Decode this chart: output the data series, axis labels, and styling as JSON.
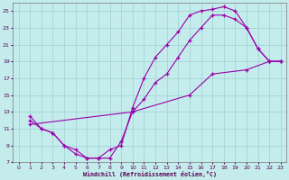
{
  "xlabel": "Windchill (Refroidissement éolien,°C)",
  "bg_color": "#c5ecec",
  "grid_color": "#a8d8d8",
  "line_color": "#9900aa",
  "xlim": [
    -0.5,
    23.5
  ],
  "ylim": [
    7,
    26
  ],
  "xticks": [
    0,
    1,
    2,
    3,
    4,
    5,
    6,
    7,
    8,
    9,
    10,
    11,
    12,
    13,
    14,
    15,
    16,
    17,
    18,
    19,
    20,
    21,
    22,
    23
  ],
  "yticks": [
    7,
    9,
    11,
    13,
    15,
    17,
    19,
    21,
    23,
    25
  ],
  "series1_x": [
    1,
    2,
    3,
    4,
    5,
    6,
    7,
    8,
    9,
    10,
    11,
    12,
    13,
    14,
    15,
    16,
    17,
    18,
    19,
    20,
    21,
    22,
    23
  ],
  "series1_y": [
    12.0,
    11.0,
    10.5,
    9.0,
    8.5,
    7.5,
    7.5,
    8.5,
    9.0,
    13.5,
    17.0,
    19.5,
    21.0,
    22.5,
    24.5,
    25.0,
    25.2,
    25.5,
    25.0,
    23.0,
    20.5,
    19.0,
    19.0
  ],
  "series2_x": [
    1,
    2,
    3,
    4,
    5,
    6,
    7,
    8,
    9,
    10,
    11,
    12,
    13,
    14,
    15,
    16,
    17,
    18,
    19,
    20,
    21,
    22,
    23
  ],
  "series2_y": [
    12.5,
    11.0,
    10.5,
    9.0,
    8.0,
    7.5,
    7.5,
    7.5,
    9.5,
    13.0,
    14.5,
    16.5,
    17.5,
    19.5,
    21.5,
    23.0,
    24.5,
    24.5,
    24.0,
    23.0,
    20.5,
    19.0,
    19.0
  ],
  "series3_x": [
    1,
    10,
    15,
    17,
    20,
    22,
    23
  ],
  "series3_y": [
    11.5,
    13.0,
    15.0,
    17.5,
    18.0,
    19.0,
    19.0
  ]
}
